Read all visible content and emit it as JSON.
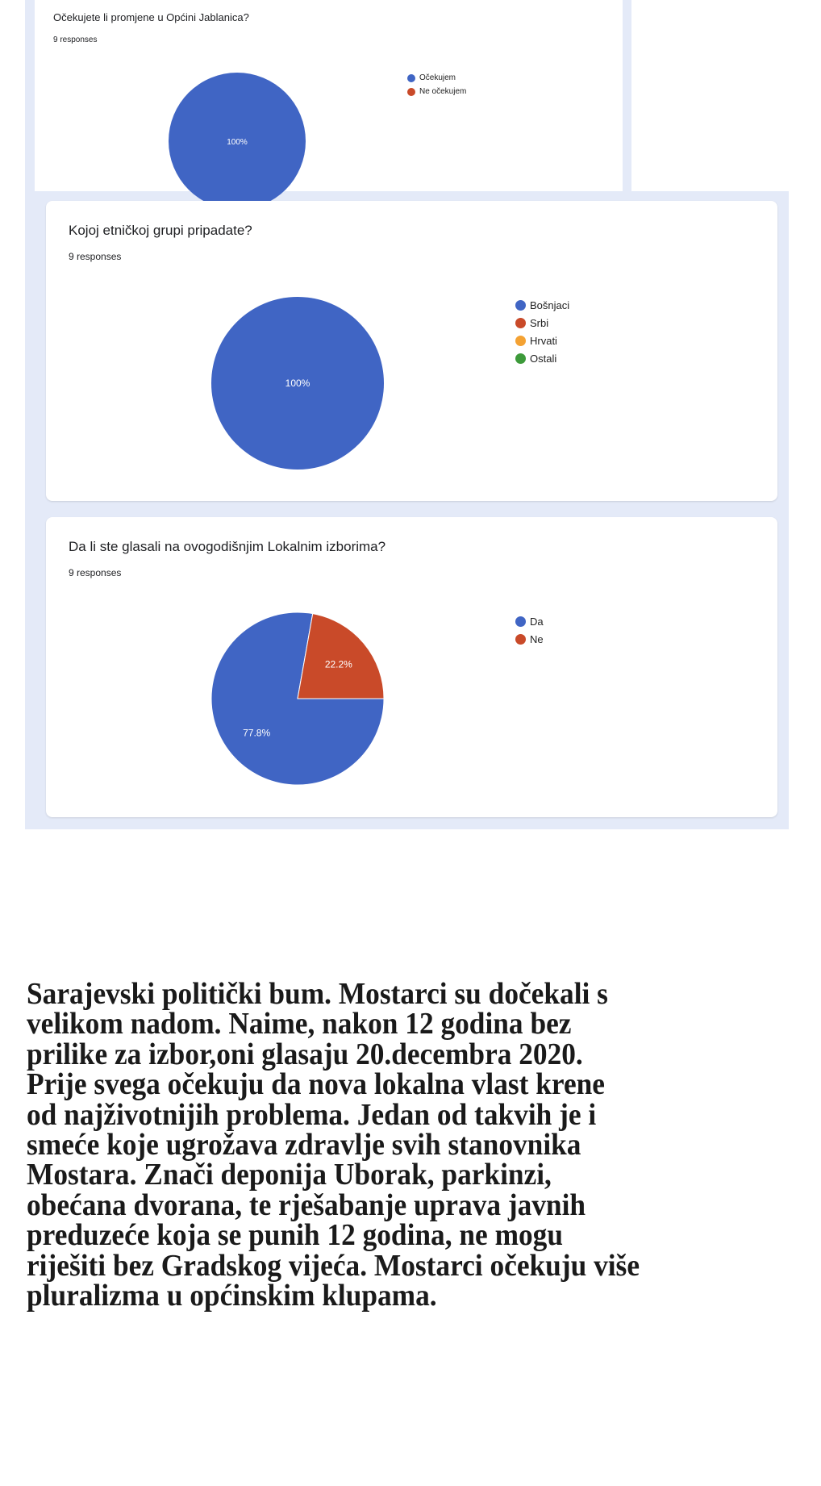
{
  "colors": {
    "blue": "#4065c4",
    "red": "#c94a29",
    "orange": "#f4a233",
    "green": "#3d9a3a",
    "band": "#e4eaf8"
  },
  "chart_data": [
    {
      "type": "pie",
      "title": "Očekujete li promjene u Općini Jablanica?",
      "subtitle": "9 responses",
      "categories": [
        "Očekujem",
        "Ne očekujem"
      ],
      "values": [
        100,
        0
      ],
      "labels": [
        "100%",
        ""
      ],
      "legend": "right"
    },
    {
      "type": "pie",
      "title": "Kojoj etničkoj grupi pripadate?",
      "subtitle": "9 responses",
      "categories": [
        "Bošnjaci",
        "Srbi",
        "Hrvati",
        "Ostali"
      ],
      "values": [
        100,
        0,
        0,
        0
      ],
      "labels": [
        "100%",
        "",
        "",
        ""
      ],
      "legend": "right"
    },
    {
      "type": "pie",
      "title": "Da li ste glasali na ovogodišnjim Lokalnim izborima?",
      "subtitle": "9 responses",
      "categories": [
        "Da",
        "Ne"
      ],
      "values": [
        77.8,
        22.2
      ],
      "labels": [
        "77.8%",
        "22.2%"
      ],
      "legend": "right"
    }
  ],
  "article": {
    "lines": [
      "Sarajevski politički bum. Mostarci su dočekali s",
      "velikom nadom. Naime, nakon 12 godina bez",
      "prilike za izbor,oni glasaju 20.decembra 2020.",
      "Prije svega očekuju da nova lokalna vlast krene",
      "od najživotnijih problema. Jedan od takvih je i",
      "smeće koje ugrožava zdravlje svih stanovnika",
      "Mostara. Znači deponija Uborak, parkinzi,",
      "obećana dvorana, te rješabanje uprava javnih",
      "preduzeće koja se punih 12 godina, ne mogu",
      "riješiti bez Gradskog vijeća. Mostarci očekuju više",
      "pluralizma u općinskim klupama."
    ]
  }
}
